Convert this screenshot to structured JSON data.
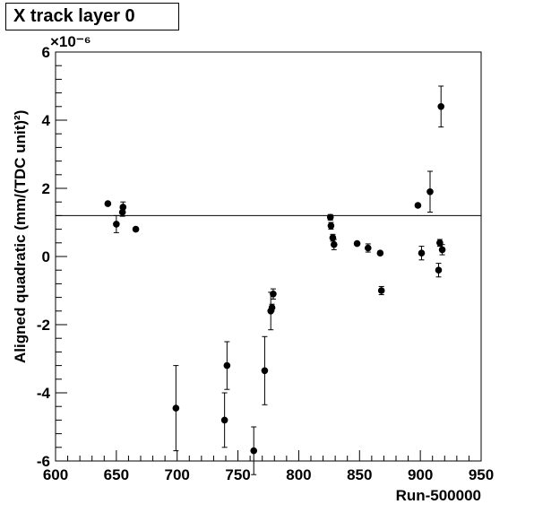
{
  "chart_data": {
    "type": "scatter",
    "title": "X track layer 0",
    "xlabel": "Run-500000",
    "ylabel": "Aligned quadratic (mm/(TDC unit)²)",
    "y_multiplier_label": "×10⁻⁶",
    "xlim": [
      600,
      950
    ],
    "ylim": [
      -6,
      6
    ],
    "x_ticks": [
      600,
      650,
      700,
      750,
      800,
      850,
      900,
      950
    ],
    "y_ticks": [
      -6,
      -4,
      -2,
      0,
      2,
      4,
      6
    ],
    "x_tick_labels": [
      "600",
      "650",
      "700",
      "750",
      "800",
      "850",
      "900",
      "950"
    ],
    "y_tick_labels": [
      "-6",
      "-4",
      "-2",
      "0",
      "2",
      "4",
      "6"
    ],
    "fit_line_y": 1.2,
    "grid": false,
    "points": [
      {
        "x": 643,
        "y": 1.55,
        "err": 0.05
      },
      {
        "x": 650,
        "y": 0.95,
        "err": 0.25
      },
      {
        "x": 655,
        "y": 1.3,
        "err": 0.12
      },
      {
        "x": 655.5,
        "y": 1.45,
        "err": 0.15
      },
      {
        "x": 666,
        "y": 0.8,
        "err": 0.05
      },
      {
        "x": 699,
        "y": -4.45,
        "err": 1.25
      },
      {
        "x": 739,
        "y": -4.8,
        "err": 0.8
      },
      {
        "x": 741,
        "y": -3.2,
        "err": 0.7
      },
      {
        "x": 763,
        "y": -5.7,
        "err": 0.7
      },
      {
        "x": 772,
        "y": -3.35,
        "err": 1.0
      },
      {
        "x": 777,
        "y": -1.6,
        "err": 0.55
      },
      {
        "x": 778,
        "y": -1.5,
        "err": 0.1
      },
      {
        "x": 779,
        "y": -1.1,
        "err": 0.15
      },
      {
        "x": 826,
        "y": 1.15,
        "err": 0.08
      },
      {
        "x": 826.5,
        "y": 0.9,
        "err": 0.1
      },
      {
        "x": 828,
        "y": 0.55,
        "err": 0.1
      },
      {
        "x": 829,
        "y": 0.35,
        "err": 0.15
      },
      {
        "x": 848,
        "y": 0.38,
        "err": 0.05
      },
      {
        "x": 857,
        "y": 0.25,
        "err": 0.12
      },
      {
        "x": 867,
        "y": 0.1,
        "err": 0.05
      },
      {
        "x": 868,
        "y": -1.0,
        "err": 0.12
      },
      {
        "x": 898,
        "y": 1.5,
        "err": 0.05
      },
      {
        "x": 901,
        "y": 0.1,
        "err": 0.2
      },
      {
        "x": 908,
        "y": 1.9,
        "err": 0.6
      },
      {
        "x": 915,
        "y": -0.4,
        "err": 0.2
      },
      {
        "x": 916,
        "y": 0.4,
        "err": 0.1
      },
      {
        "x": 917,
        "y": 4.4,
        "err": 0.6
      },
      {
        "x": 918,
        "y": 0.2,
        "err": 0.15
      }
    ]
  }
}
